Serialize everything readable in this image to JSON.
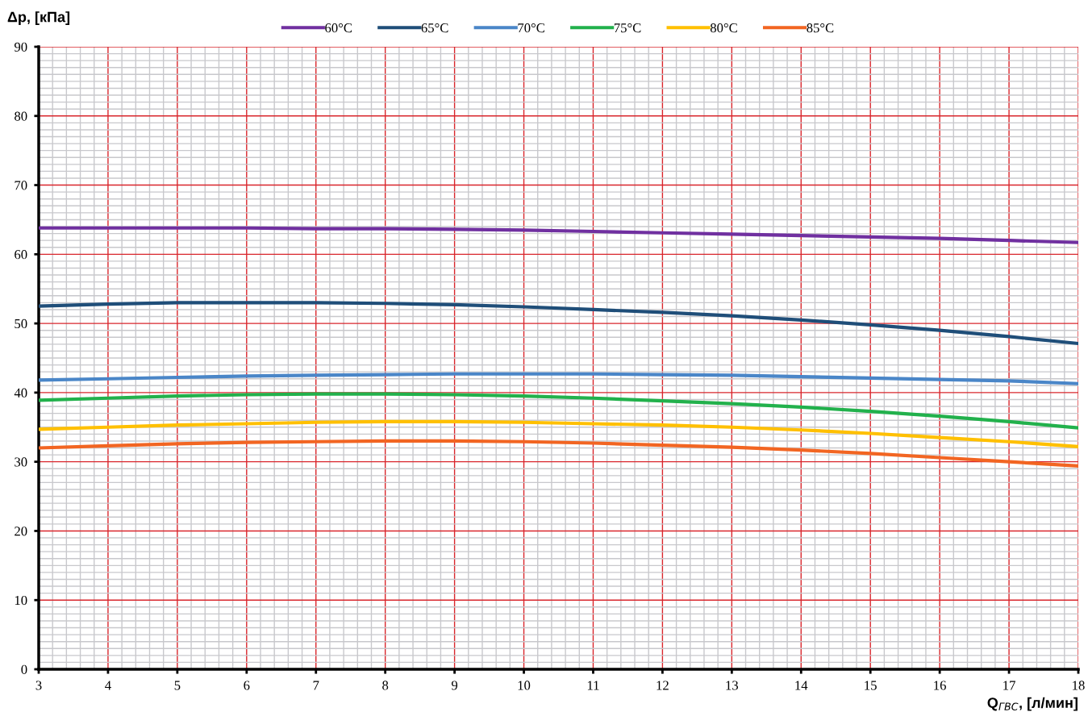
{
  "chart_data": {
    "type": "line",
    "xlabel": "Q$_{ГВС}$, [л/мин]",
    "ylabel": "Δp, [кПа]",
    "x": [
      3,
      4,
      5,
      6,
      7,
      8,
      9,
      10,
      11,
      12,
      13,
      14,
      15,
      16,
      17,
      18
    ],
    "xlim": [
      3,
      18
    ],
    "xticks": [
      3,
      4,
      5,
      6,
      7,
      8,
      9,
      10,
      11,
      12,
      13,
      14,
      15,
      16,
      17,
      18
    ],
    "ylim": [
      0,
      90
    ],
    "yticks": [
      0,
      10,
      20,
      30,
      40,
      50,
      60,
      70,
      80,
      90
    ],
    "grid": true,
    "legend": "top",
    "marker": "none",
    "line_style": "solid",
    "series": [
      {
        "name": "60°C",
        "color": "#7030a0",
        "values": [
          63.8,
          63.8,
          63.8,
          63.8,
          63.7,
          63.7,
          63.6,
          63.5,
          63.3,
          63.1,
          62.9,
          62.7,
          62.5,
          62.3,
          62.0,
          61.7
        ]
      },
      {
        "name": "65°C",
        "color": "#1f4e79",
        "values": [
          52.5,
          52.8,
          53.0,
          53.0,
          53.0,
          52.9,
          52.7,
          52.4,
          52.0,
          51.6,
          51.1,
          50.5,
          49.8,
          49.0,
          48.1,
          47.1
        ]
      },
      {
        "name": "70°C",
        "color": "#4a86c8",
        "values": [
          41.8,
          42.0,
          42.2,
          42.4,
          42.5,
          42.6,
          42.7,
          42.7,
          42.7,
          42.6,
          42.5,
          42.3,
          42.1,
          41.9,
          41.7,
          41.3
        ]
      },
      {
        "name": "75°C",
        "color": "#22b14c",
        "values": [
          38.9,
          39.2,
          39.5,
          39.7,
          39.8,
          39.8,
          39.7,
          39.5,
          39.2,
          38.8,
          38.4,
          37.9,
          37.3,
          36.6,
          35.8,
          34.9
        ]
      },
      {
        "name": "80°C",
        "color": "#ffc000",
        "values": [
          34.7,
          35.0,
          35.3,
          35.5,
          35.7,
          35.8,
          35.8,
          35.7,
          35.5,
          35.3,
          35.0,
          34.6,
          34.1,
          33.5,
          32.9,
          32.2
        ]
      },
      {
        "name": "85°C",
        "color": "#f26522",
        "values": [
          32.0,
          32.3,
          32.6,
          32.8,
          32.9,
          33.0,
          33.0,
          32.9,
          32.7,
          32.4,
          32.1,
          31.7,
          31.2,
          30.6,
          30.0,
          29.4
        ]
      }
    ]
  }
}
